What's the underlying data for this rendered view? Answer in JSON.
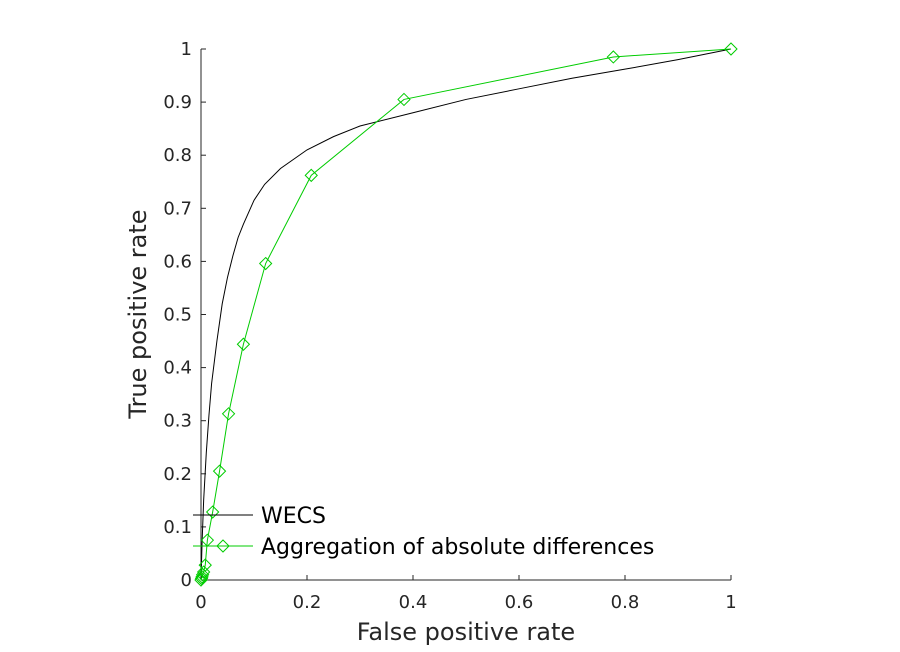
{
  "chart_data": {
    "type": "line",
    "title": "",
    "xlabel": "False positive rate",
    "ylabel": "True positive rate",
    "xlim": [
      0,
      1
    ],
    "ylim": [
      0,
      1
    ],
    "xticks": [
      0,
      0.2,
      0.4,
      0.6,
      0.8,
      1
    ],
    "yticks": [
      0,
      0.1,
      0.2,
      0.3,
      0.4,
      0.5,
      0.6,
      0.7,
      0.8,
      0.9,
      1
    ],
    "xtick_labels": [
      "0",
      "0.2",
      "0.4",
      "0.6",
      "0.8",
      "1"
    ],
    "ytick_labels": [
      "0",
      "0.1",
      "0.2",
      "0.3",
      "0.4",
      "0.5",
      "0.6",
      "0.7",
      "0.8",
      "0.9",
      "1"
    ],
    "grid": false,
    "legend_position": "bottom-left",
    "series": [
      {
        "name": "WECS",
        "color": "#000000",
        "marker": "none",
        "x": [
          0,
          0.002,
          0.005,
          0.01,
          0.015,
          0.02,
          0.03,
          0.04,
          0.05,
          0.06,
          0.07,
          0.08,
          0.1,
          0.12,
          0.15,
          0.2,
          0.25,
          0.3,
          0.4,
          0.5,
          0.6,
          0.7,
          0.8,
          0.9,
          1
        ],
        "y": [
          0,
          0.07,
          0.15,
          0.24,
          0.31,
          0.37,
          0.45,
          0.52,
          0.57,
          0.61,
          0.645,
          0.67,
          0.715,
          0.745,
          0.775,
          0.81,
          0.835,
          0.855,
          0.88,
          0.905,
          0.925,
          0.945,
          0.962,
          0.98,
          1
        ]
      },
      {
        "name": "Aggregation of absolute differences",
        "color": "#00cc00",
        "marker": "diamond",
        "x": [
          0,
          0.001,
          0.002,
          0.003,
          0.005,
          0.008,
          0.012,
          0.022,
          0.035,
          0.052,
          0.08,
          0.122,
          0.208,
          0.383,
          0.778,
          1
        ],
        "y": [
          0,
          0.003,
          0.006,
          0.01,
          0.015,
          0.028,
          0.075,
          0.128,
          0.205,
          0.313,
          0.444,
          0.596,
          0.762,
          0.905,
          0.985,
          1
        ]
      }
    ]
  }
}
